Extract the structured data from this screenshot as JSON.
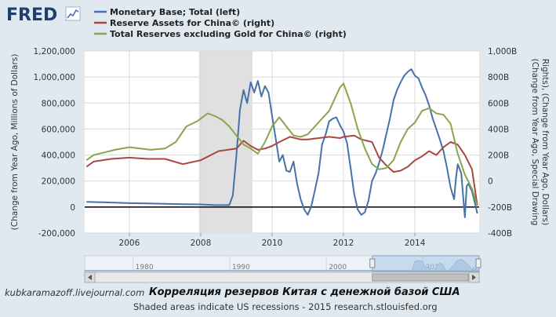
{
  "logo_text": "FRED",
  "chart_data": {
    "type": "line",
    "series": [
      {
        "name": "Monetary Base; Total (left)",
        "color": "#4572a7",
        "axis": "left",
        "values": [
          [
            2004.8,
            40000
          ],
          [
            2005.5,
            35000
          ],
          [
            2006.0,
            30000
          ],
          [
            2006.5,
            28000
          ],
          [
            2007.0,
            25000
          ],
          [
            2007.5,
            22000
          ],
          [
            2008.0,
            20000
          ],
          [
            2008.4,
            15000
          ],
          [
            2008.8,
            15000
          ],
          [
            2008.9,
            90000
          ],
          [
            2009.0,
            400000
          ],
          [
            2009.1,
            750000
          ],
          [
            2009.2,
            900000
          ],
          [
            2009.3,
            800000
          ],
          [
            2009.4,
            960000
          ],
          [
            2009.5,
            880000
          ],
          [
            2009.6,
            970000
          ],
          [
            2009.7,
            850000
          ],
          [
            2009.8,
            930000
          ],
          [
            2009.9,
            880000
          ],
          [
            2010.0,
            700000
          ],
          [
            2010.1,
            530000
          ],
          [
            2010.2,
            350000
          ],
          [
            2010.3,
            400000
          ],
          [
            2010.4,
            280000
          ],
          [
            2010.5,
            270000
          ],
          [
            2010.6,
            350000
          ],
          [
            2010.7,
            180000
          ],
          [
            2010.8,
            60000
          ],
          [
            2010.9,
            -20000
          ],
          [
            2011.0,
            -60000
          ],
          [
            2011.1,
            10000
          ],
          [
            2011.2,
            130000
          ],
          [
            2011.3,
            260000
          ],
          [
            2011.4,
            480000
          ],
          [
            2011.5,
            560000
          ],
          [
            2011.6,
            660000
          ],
          [
            2011.7,
            680000
          ],
          [
            2011.8,
            690000
          ],
          [
            2011.9,
            630000
          ],
          [
            2012.0,
            580000
          ],
          [
            2012.1,
            490000
          ],
          [
            2012.2,
            300000
          ],
          [
            2012.3,
            100000
          ],
          [
            2012.4,
            -20000
          ],
          [
            2012.5,
            -60000
          ],
          [
            2012.6,
            -40000
          ],
          [
            2012.7,
            50000
          ],
          [
            2012.8,
            200000
          ],
          [
            2012.9,
            260000
          ],
          [
            2013.0,
            340000
          ],
          [
            2013.1,
            440000
          ],
          [
            2013.2,
            560000
          ],
          [
            2013.3,
            680000
          ],
          [
            2013.4,
            820000
          ],
          [
            2013.5,
            900000
          ],
          [
            2013.6,
            960000
          ],
          [
            2013.7,
            1010000
          ],
          [
            2013.8,
            1040000
          ],
          [
            2013.9,
            1060000
          ],
          [
            2014.0,
            1010000
          ],
          [
            2014.1,
            990000
          ],
          [
            2014.2,
            920000
          ],
          [
            2014.3,
            860000
          ],
          [
            2014.4,
            780000
          ],
          [
            2014.5,
            680000
          ],
          [
            2014.6,
            600000
          ],
          [
            2014.7,
            520000
          ],
          [
            2014.8,
            430000
          ],
          [
            2014.9,
            300000
          ],
          [
            2015.0,
            150000
          ],
          [
            2015.1,
            60000
          ],
          [
            2015.15,
            220000
          ],
          [
            2015.2,
            330000
          ],
          [
            2015.3,
            260000
          ],
          [
            2015.4,
            -80000
          ],
          [
            2015.45,
            160000
          ],
          [
            2015.5,
            180000
          ],
          [
            2015.6,
            120000
          ],
          [
            2015.7,
            10000
          ],
          [
            2015.75,
            -50000
          ]
        ]
      },
      {
        "name": "Reserve Assets for China© (right)",
        "color": "#aa4643",
        "axis": "right",
        "values": [
          [
            2004.8,
            110
          ],
          [
            2005.0,
            150
          ],
          [
            2005.5,
            170
          ],
          [
            2006.0,
            180
          ],
          [
            2006.5,
            170
          ],
          [
            2007.0,
            170
          ],
          [
            2007.5,
            130
          ],
          [
            2008.0,
            160
          ],
          [
            2008.5,
            230
          ],
          [
            2009.0,
            250
          ],
          [
            2009.2,
            310
          ],
          [
            2009.4,
            270
          ],
          [
            2009.6,
            240
          ],
          [
            2009.8,
            250
          ],
          [
            2010.0,
            270
          ],
          [
            2010.2,
            300
          ],
          [
            2010.5,
            340
          ],
          [
            2010.8,
            320
          ],
          [
            2011.0,
            320
          ],
          [
            2011.3,
            330
          ],
          [
            2011.6,
            340
          ],
          [
            2011.9,
            330
          ],
          [
            2012.0,
            340
          ],
          [
            2012.3,
            350
          ],
          [
            2012.5,
            320
          ],
          [
            2012.8,
            300
          ],
          [
            2013.0,
            180
          ],
          [
            2013.2,
            120
          ],
          [
            2013.4,
            70
          ],
          [
            2013.6,
            80
          ],
          [
            2013.8,
            110
          ],
          [
            2014.0,
            160
          ],
          [
            2014.2,
            190
          ],
          [
            2014.4,
            230
          ],
          [
            2014.6,
            200
          ],
          [
            2014.8,
            260
          ],
          [
            2015.0,
            300
          ],
          [
            2015.2,
            280
          ],
          [
            2015.4,
            200
          ],
          [
            2015.6,
            90
          ],
          [
            2015.75,
            -190
          ]
        ]
      },
      {
        "name": "Total Reserves excluding Gold for China© (right)",
        "color": "#89a54e",
        "axis": "right",
        "values": [
          [
            2004.8,
            160
          ],
          [
            2005.0,
            200
          ],
          [
            2005.3,
            220
          ],
          [
            2005.6,
            240
          ],
          [
            2006.0,
            260
          ],
          [
            2006.3,
            250
          ],
          [
            2006.6,
            240
          ],
          [
            2007.0,
            250
          ],
          [
            2007.3,
            300
          ],
          [
            2007.6,
            420
          ],
          [
            2007.9,
            460
          ],
          [
            2008.0,
            480
          ],
          [
            2008.2,
            520
          ],
          [
            2008.4,
            500
          ],
          [
            2008.6,
            470
          ],
          [
            2008.8,
            420
          ],
          [
            2009.0,
            350
          ],
          [
            2009.2,
            280
          ],
          [
            2009.4,
            250
          ],
          [
            2009.6,
            210
          ],
          [
            2009.8,
            300
          ],
          [
            2010.0,
            420
          ],
          [
            2010.2,
            490
          ],
          [
            2010.4,
            420
          ],
          [
            2010.6,
            350
          ],
          [
            2010.8,
            340
          ],
          [
            2011.0,
            360
          ],
          [
            2011.3,
            450
          ],
          [
            2011.6,
            540
          ],
          [
            2011.9,
            720
          ],
          [
            2012.0,
            750
          ],
          [
            2012.2,
            600
          ],
          [
            2012.4,
            400
          ],
          [
            2012.6,
            250
          ],
          [
            2012.8,
            130
          ],
          [
            2013.0,
            90
          ],
          [
            2013.2,
            100
          ],
          [
            2013.4,
            160
          ],
          [
            2013.6,
            300
          ],
          [
            2013.8,
            400
          ],
          [
            2014.0,
            450
          ],
          [
            2014.2,
            540
          ],
          [
            2014.4,
            560
          ],
          [
            2014.6,
            520
          ],
          [
            2014.8,
            510
          ],
          [
            2015.0,
            440
          ],
          [
            2015.2,
            210
          ],
          [
            2015.4,
            50
          ],
          [
            2015.6,
            -60
          ],
          [
            2015.75,
            -190
          ]
        ]
      }
    ],
    "left_axis": {
      "label": "(Change from Year Ago, Millions of Dollars)",
      "ylim": [
        -200000,
        1200000
      ],
      "ticks": [
        "-200,000",
        "0",
        "200,000",
        "400,000",
        "600,000",
        "800,000",
        "1,000,000",
        "1,200,000"
      ]
    },
    "right_axis": {
      "label": "(Change from Year Ago, Special Drawing Rights), (Change from Year Ago, Dollars)",
      "ylim": [
        -400,
        1000
      ],
      "ticks": [
        "-400B",
        "-200B",
        "0",
        "200B",
        "400B",
        "600B",
        "800B",
        "1,000B"
      ]
    },
    "x_axis": {
      "xlim": [
        2004.75,
        2015.8
      ],
      "ticks": [
        "2006",
        "2008",
        "2010",
        "2012",
        "2014"
      ],
      "tick_values": [
        2006,
        2008,
        2010,
        2012,
        2014
      ]
    },
    "recession": [
      2007.95,
      2009.45
    ],
    "grid": true,
    "legend_position": "top"
  },
  "navigator": {
    "ticks": [
      "1980",
      "1990",
      "2000",
      "2010"
    ],
    "tick_values": [
      1980,
      1990,
      2000,
      2010
    ],
    "range": [
      1975,
      2015.8
    ],
    "selected": [
      2004.75,
      2015.8
    ]
  },
  "footer": {
    "credit": "kubkaramazoff.livejournal.com",
    "title_ru": "Корреляция резервов Китая с денежной базой США",
    "note": "Shaded areas indicate US recessions - 2015 research.stlouisfed.org"
  }
}
